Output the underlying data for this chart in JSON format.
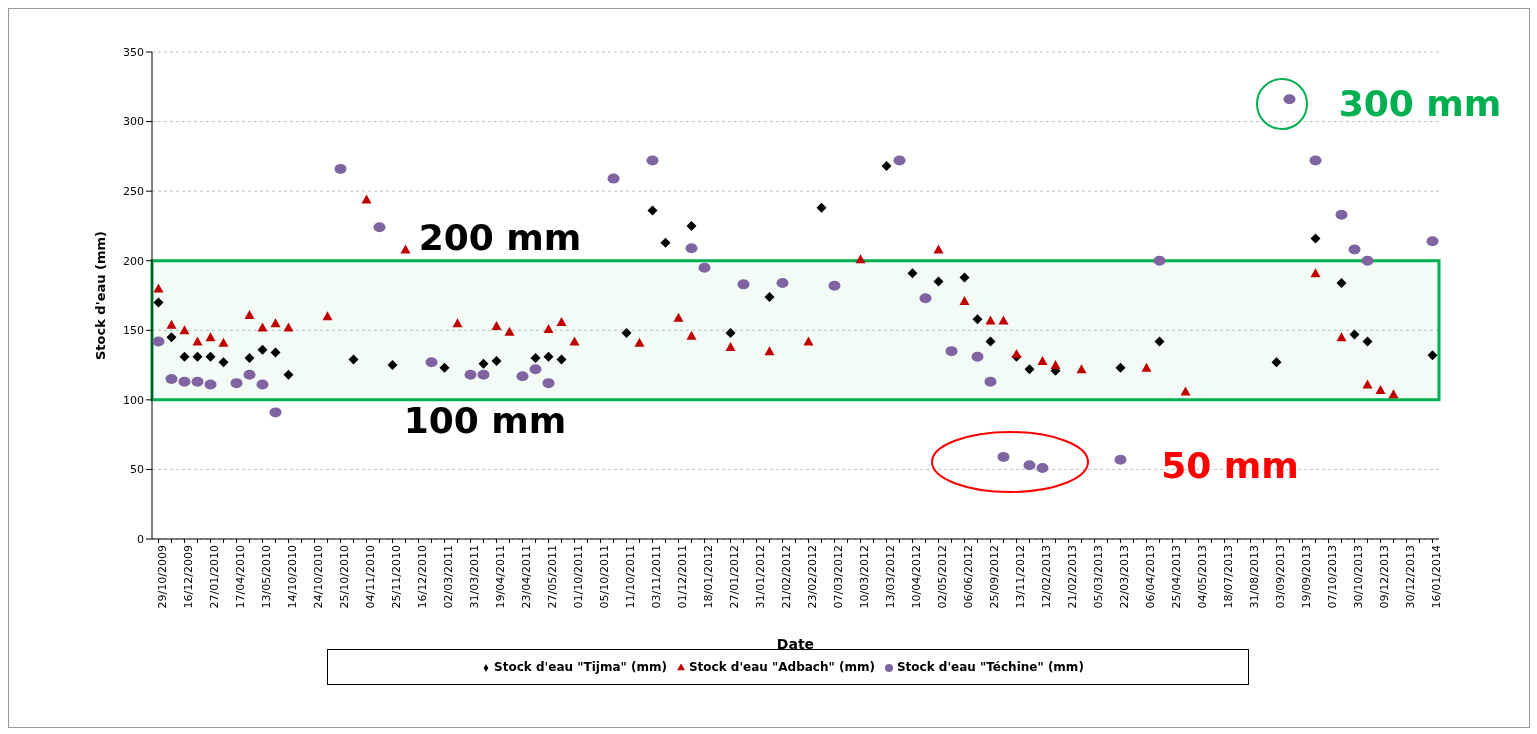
{
  "chart_data": {
    "type": "scatter",
    "xlabel": "Date",
    "ylabel": "Stock d'eau (mm)",
    "categories": [
      "29/10/2009",
      null,
      "16/12/2009",
      null,
      "27/01/2010",
      null,
      "17/04/2010",
      null,
      "13/05/2010",
      null,
      "14/10/2010",
      null,
      "24/10/2010",
      null,
      "25/10/2010",
      null,
      "04/11/2010",
      null,
      "25/11/2010",
      null,
      "16/12/2010",
      null,
      "02/03/2011",
      null,
      "31/03/2011",
      null,
      "19/04/2011",
      null,
      "23/04/2011",
      null,
      "27/05/2011",
      null,
      "01/10/2011",
      null,
      "05/10/2011",
      null,
      "11/10/2011",
      null,
      "03/11/2011",
      null,
      "01/12/2011",
      null,
      "18/01/2012",
      null,
      "27/01/2012",
      null,
      "31/01/2012",
      null,
      "21/02/2012",
      null,
      "23/02/2012",
      null,
      "07/03/2012",
      null,
      "10/03/2012",
      null,
      "13/03/2012",
      null,
      "10/04/2012",
      null,
      "02/05/2012",
      null,
      "06/06/2012",
      null,
      "25/09/2012",
      null,
      "13/11/2012",
      null,
      "12/02/2013",
      null,
      "21/02/2013",
      null,
      "05/03/2013",
      null,
      "22/03/2013",
      null,
      "06/04/2013",
      null,
      "25/04/2013",
      null,
      "04/05/2013",
      null,
      "18/07/2013",
      null,
      "31/08/2013",
      null,
      "03/09/2013",
      null,
      "19/09/2013",
      null,
      "07/10/2013",
      null,
      "30/10/2013",
      null,
      "09/12/2013",
      null,
      "30/12/2013",
      null,
      "16/01/2014"
    ],
    "series": [
      {
        "name": "Stock d'eau \"Tijma\" (mm)",
        "color": "#000000",
        "marker": "diamond",
        "values": [
          170,
          145,
          131,
          131,
          131,
          127,
          null,
          130,
          136,
          134,
          118,
          null,
          null,
          null,
          null,
          129,
          null,
          null,
          125,
          null,
          null,
          null,
          123,
          null,
          null,
          126,
          128,
          null,
          null,
          130,
          131,
          129,
          null,
          null,
          null,
          null,
          148,
          null,
          236,
          213,
          null,
          225,
          null,
          null,
          148,
          null,
          null,
          174,
          null,
          null,
          null,
          238,
          null,
          null,
          null,
          null,
          268,
          null,
          191,
          null,
          185,
          null,
          188,
          158,
          142,
          null,
          131,
          122,
          null,
          121,
          null,
          null,
          null,
          null,
          123,
          null,
          null,
          142,
          null,
          null,
          null,
          null,
          null,
          null,
          null,
          null,
          127,
          null,
          null,
          216,
          null,
          184,
          147,
          142,
          null,
          null,
          null,
          null,
          132
        ]
      },
      {
        "name": "Stock d'eau \"Adbach\" (mm)",
        "color": "#c00000",
        "marker": "triangle",
        "values": [
          180,
          154,
          150,
          142,
          145,
          141,
          null,
          161,
          152,
          155,
          152,
          null,
          null,
          160,
          null,
          null,
          244,
          null,
          null,
          208,
          null,
          null,
          null,
          155,
          null,
          null,
          153,
          149,
          null,
          null,
          151,
          156,
          142,
          null,
          null,
          null,
          null,
          141,
          null,
          null,
          159,
          146,
          null,
          null,
          138,
          null,
          null,
          135,
          null,
          null,
          142,
          null,
          null,
          null,
          201,
          null,
          null,
          null,
          null,
          null,
          208,
          null,
          171,
          null,
          157,
          157,
          133,
          null,
          128,
          125,
          null,
          122,
          null,
          null,
          null,
          null,
          123,
          null,
          null,
          106,
          null,
          null,
          null,
          null,
          null,
          null,
          null,
          null,
          null,
          191,
          null,
          145,
          null,
          111,
          107,
          104,
          null,
          null,
          null
        ]
      },
      {
        "name": "Stock d'eau \"Téchine\" (mm)",
        "color": "#8064a2",
        "marker": "circle",
        "values": [
          142,
          115,
          113,
          113,
          111,
          null,
          112,
          118,
          111,
          91,
          null,
          null,
          null,
          null,
          266,
          null,
          null,
          224,
          null,
          null,
          null,
          127,
          null,
          null,
          118,
          118,
          null,
          null,
          117,
          122,
          112,
          null,
          null,
          null,
          null,
          259,
          null,
          null,
          272,
          null,
          null,
          209,
          195,
          null,
          null,
          183,
          null,
          null,
          184,
          null,
          null,
          null,
          182,
          null,
          null,
          null,
          null,
          272,
          null,
          173,
          null,
          135,
          null,
          131,
          113,
          59,
          null,
          53,
          51,
          null,
          null,
          null,
          null,
          null,
          57,
          null,
          null,
          200,
          null,
          null,
          null,
          null,
          null,
          null,
          null,
          null,
          null,
          316,
          null,
          272,
          null,
          233,
          208,
          200,
          null,
          null,
          null,
          null,
          214
        ]
      }
    ],
    "ylim": [
      0,
      350
    ],
    "yticks": [
      0,
      50,
      100,
      150,
      200,
      250,
      300,
      350
    ],
    "grid": "y",
    "legend": "bottom",
    "bands": [
      {
        "axis": "y",
        "from": 100,
        "to": 200,
        "color": "#00b050"
      }
    ],
    "annotations": [
      "200 mm",
      "100 mm",
      "50 mm",
      "300 mm"
    ]
  }
}
